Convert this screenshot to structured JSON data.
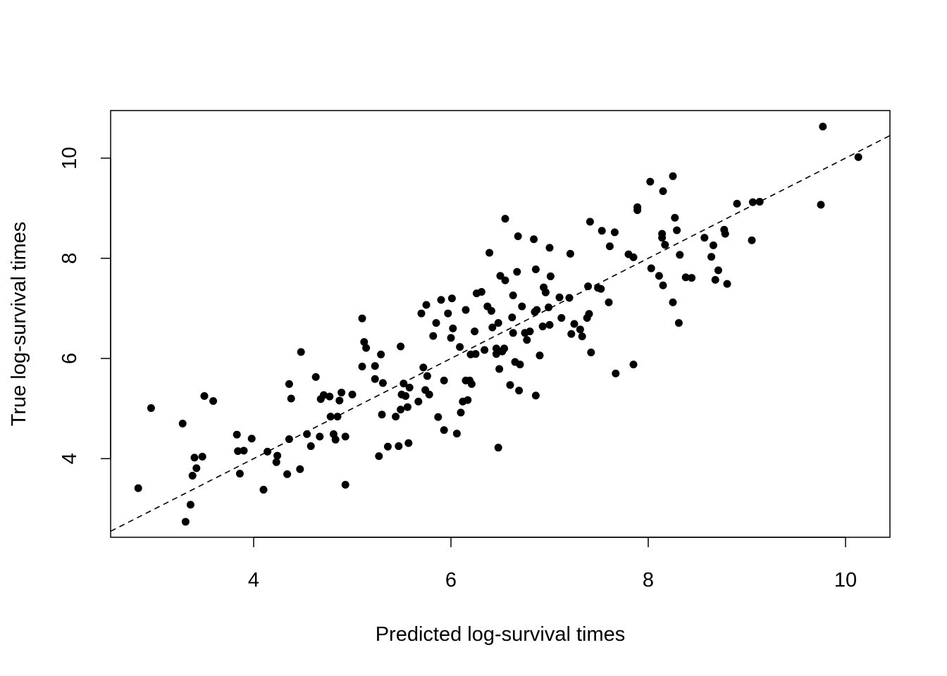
{
  "chart_data": {
    "type": "scatter",
    "title": "",
    "xlabel": "Predicted log-survival times",
    "ylabel": "True log-survival times",
    "xlim": [
      2.55,
      10.45
    ],
    "ylim": [
      2.43,
      10.95
    ],
    "xticks": [
      4,
      6,
      8,
      10
    ],
    "yticks": [
      4,
      6,
      8,
      10
    ],
    "x_tick_labels": [
      "4",
      "6",
      "8",
      "10"
    ],
    "y_tick_labels": [
      "4",
      "6",
      "8",
      "10"
    ],
    "grid": false,
    "legend": "none",
    "point_color": "#000000",
    "reference_line": {
      "style": "dashed",
      "slope": 1,
      "intercept": 0
    },
    "points": [
      [
        2.83,
        3.41
      ],
      [
        2.96,
        5.01
      ],
      [
        3.28,
        4.7
      ],
      [
        3.31,
        2.74
      ],
      [
        3.36,
        3.08
      ],
      [
        3.38,
        3.66
      ],
      [
        3.4,
        4.02
      ],
      [
        3.42,
        3.81
      ],
      [
        3.48,
        4.04
      ],
      [
        3.5,
        5.25
      ],
      [
        3.59,
        5.15
      ],
      [
        3.83,
        4.48
      ],
      [
        3.84,
        4.15
      ],
      [
        3.86,
        3.7
      ],
      [
        3.9,
        4.16
      ],
      [
        3.98,
        4.4
      ],
      [
        4.1,
        3.38
      ],
      [
        4.14,
        4.14
      ],
      [
        4.23,
        3.93
      ],
      [
        4.24,
        4.06
      ],
      [
        4.34,
        3.69
      ],
      [
        4.36,
        4.39
      ],
      [
        4.36,
        5.49
      ],
      [
        4.38,
        5.2
      ],
      [
        4.47,
        3.79
      ],
      [
        4.48,
        6.13
      ],
      [
        4.54,
        4.49
      ],
      [
        4.58,
        4.25
      ],
      [
        4.63,
        5.63
      ],
      [
        4.67,
        4.44
      ],
      [
        4.68,
        5.19
      ],
      [
        4.71,
        5.27
      ],
      [
        4.77,
        5.24
      ],
      [
        4.78,
        4.84
      ],
      [
        4.81,
        4.49
      ],
      [
        4.83,
        4.38
      ],
      [
        4.85,
        4.84
      ],
      [
        4.87,
        5.16
      ],
      [
        4.89,
        5.32
      ],
      [
        4.93,
        4.44
      ],
      [
        4.93,
        3.48
      ],
      [
        5.0,
        5.28
      ],
      [
        5.1,
        6.8
      ],
      [
        5.1,
        5.84
      ],
      [
        5.12,
        6.33
      ],
      [
        5.14,
        6.21
      ],
      [
        5.23,
        5.85
      ],
      [
        5.23,
        5.59
      ],
      [
        5.27,
        4.05
      ],
      [
        5.29,
        6.08
      ],
      [
        5.3,
        4.88
      ],
      [
        5.31,
        5.51
      ],
      [
        5.36,
        4.24
      ],
      [
        5.44,
        4.84
      ],
      [
        5.47,
        4.25
      ],
      [
        5.49,
        6.24
      ],
      [
        5.49,
        4.98
      ],
      [
        5.5,
        5.28
      ],
      [
        5.52,
        5.5
      ],
      [
        5.54,
        5.25
      ],
      [
        5.56,
        5.03
      ],
      [
        5.57,
        4.31
      ],
      [
        5.58,
        5.42
      ],
      [
        5.67,
        5.14
      ],
      [
        5.7,
        6.9
      ],
      [
        5.72,
        5.82
      ],
      [
        5.74,
        5.37
      ],
      [
        5.75,
        7.07
      ],
      [
        5.76,
        5.65
      ],
      [
        5.78,
        5.28
      ],
      [
        5.82,
        6.45
      ],
      [
        5.85,
        6.71
      ],
      [
        5.87,
        4.83
      ],
      [
        5.9,
        7.17
      ],
      [
        5.93,
        5.56
      ],
      [
        5.93,
        4.57
      ],
      [
        5.97,
        6.9
      ],
      [
        6.0,
        6.41
      ],
      [
        6.01,
        7.2
      ],
      [
        6.02,
        6.6
      ],
      [
        6.06,
        4.5
      ],
      [
        6.09,
        6.23
      ],
      [
        6.1,
        4.92
      ],
      [
        6.12,
        5.14
      ],
      [
        6.15,
        6.97
      ],
      [
        6.15,
        5.56
      ],
      [
        6.17,
        5.17
      ],
      [
        6.19,
        5.56
      ],
      [
        6.2,
        6.08
      ],
      [
        6.21,
        5.49
      ],
      [
        6.24,
        6.54
      ],
      [
        6.25,
        6.09
      ],
      [
        6.26,
        7.3
      ],
      [
        6.31,
        7.33
      ],
      [
        6.34,
        6.17
      ],
      [
        6.37,
        7.04
      ],
      [
        6.39,
        8.11
      ],
      [
        6.41,
        6.95
      ],
      [
        6.42,
        6.62
      ],
      [
        6.46,
        6.2
      ],
      [
        6.46,
        6.09
      ],
      [
        6.48,
        4.22
      ],
      [
        6.48,
        6.71
      ],
      [
        6.49,
        5.79
      ],
      [
        6.5,
        7.65
      ],
      [
        6.52,
        6.14
      ],
      [
        6.54,
        6.2
      ],
      [
        6.55,
        7.56
      ],
      [
        6.55,
        8.79
      ],
      [
        6.6,
        5.47
      ],
      [
        6.62,
        6.82
      ],
      [
        6.63,
        6.51
      ],
      [
        6.63,
        7.26
      ],
      [
        6.65,
        5.93
      ],
      [
        6.67,
        7.73
      ],
      [
        6.68,
        8.44
      ],
      [
        6.69,
        5.36
      ],
      [
        6.7,
        5.88
      ],
      [
        6.72,
        7.04
      ],
      [
        6.75,
        6.51
      ],
      [
        6.77,
        6.37
      ],
      [
        6.8,
        6.54
      ],
      [
        6.84,
        8.38
      ],
      [
        6.85,
        6.93
      ],
      [
        6.86,
        7.78
      ],
      [
        6.86,
        5.26
      ],
      [
        6.87,
        6.97
      ],
      [
        6.9,
        6.06
      ],
      [
        6.93,
        6.64
      ],
      [
        6.94,
        7.42
      ],
      [
        6.96,
        7.32
      ],
      [
        6.99,
        7.02
      ],
      [
        7.0,
        8.21
      ],
      [
        7.0,
        6.67
      ],
      [
        7.01,
        7.64
      ],
      [
        7.1,
        7.22
      ],
      [
        7.12,
        6.81
      ],
      [
        7.2,
        7.21
      ],
      [
        7.21,
        8.09
      ],
      [
        7.22,
        6.49
      ],
      [
        7.25,
        6.69
      ],
      [
        7.31,
        6.58
      ],
      [
        7.33,
        6.44
      ],
      [
        7.38,
        6.81
      ],
      [
        7.39,
        7.44
      ],
      [
        7.4,
        6.89
      ],
      [
        7.41,
        8.73
      ],
      [
        7.42,
        6.12
      ],
      [
        7.49,
        7.41
      ],
      [
        7.52,
        7.39
      ],
      [
        7.53,
        8.55
      ],
      [
        7.6,
        7.12
      ],
      [
        7.61,
        8.24
      ],
      [
        7.66,
        8.52
      ],
      [
        7.67,
        5.7
      ],
      [
        7.8,
        8.08
      ],
      [
        7.85,
        5.88
      ],
      [
        7.85,
        8.02
      ],
      [
        7.89,
        8.96
      ],
      [
        7.89,
        9.02
      ],
      [
        8.02,
        9.53
      ],
      [
        8.03,
        7.8
      ],
      [
        8.11,
        7.65
      ],
      [
        8.14,
        8.41
      ],
      [
        8.14,
        8.49
      ],
      [
        8.15,
        7.46
      ],
      [
        8.15,
        9.34
      ],
      [
        8.17,
        8.27
      ],
      [
        8.25,
        9.64
      ],
      [
        8.25,
        7.12
      ],
      [
        8.27,
        8.81
      ],
      [
        8.29,
        8.56
      ],
      [
        8.31,
        6.71
      ],
      [
        8.32,
        8.07
      ],
      [
        8.38,
        7.62
      ],
      [
        8.44,
        7.61
      ],
      [
        8.57,
        8.41
      ],
      [
        8.64,
        8.03
      ],
      [
        8.66,
        8.26
      ],
      [
        8.68,
        7.57
      ],
      [
        8.71,
        7.76
      ],
      [
        8.77,
        8.57
      ],
      [
        8.78,
        8.49
      ],
      [
        8.8,
        7.49
      ],
      [
        8.9,
        9.09
      ],
      [
        9.05,
        8.36
      ],
      [
        9.06,
        9.12
      ],
      [
        9.13,
        9.13
      ],
      [
        9.75,
        9.07
      ],
      [
        9.77,
        10.63
      ],
      [
        10.13,
        10.02
      ]
    ]
  }
}
